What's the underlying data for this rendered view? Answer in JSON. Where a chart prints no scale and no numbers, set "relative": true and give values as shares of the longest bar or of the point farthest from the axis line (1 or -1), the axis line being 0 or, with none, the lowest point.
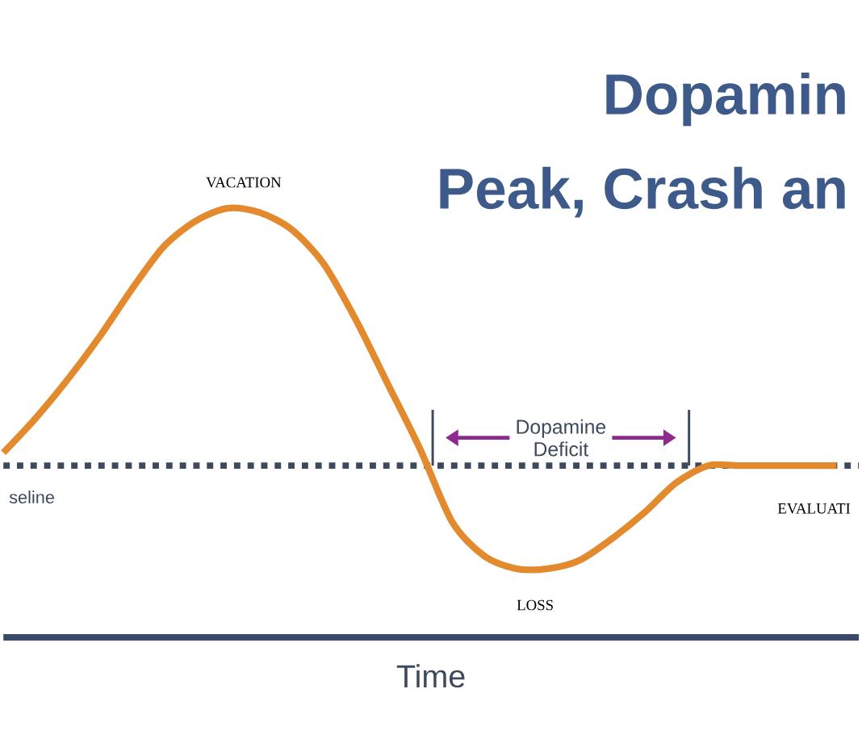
{
  "chart_data": {
    "type": "line",
    "title": "Dopamin",
    "subtitle": "Peak, Crash an",
    "xlabel": "Time",
    "relative": true,
    "categories": [
      null,
      null,
      null,
      null,
      null,
      null,
      null,
      null,
      null,
      null,
      null,
      null,
      null,
      null,
      null,
      null,
      null,
      null,
      null,
      null,
      null,
      null,
      null,
      null,
      null,
      null,
      null
    ],
    "series": [
      {
        "color": "#e38a2e",
        "values": [
          0.43,
          0.51,
          0.6,
          0.7,
          0.81,
          0.91,
          0.97,
          1.0,
          0.99,
          0.95,
          0.87,
          0.74,
          0.59,
          0.44,
          0.27,
          0.19,
          0.16,
          0.16,
          0.18,
          0.23,
          0.29,
          0.36,
          0.4,
          0.4,
          0.4,
          0.4,
          0.4
        ]
      }
    ],
    "line_style": "solid",
    "ref_lines": [
      {
        "axis": "y",
        "value": 0.4,
        "label": "seline",
        "color": "#3d4a5c",
        "line_style": "dotted"
      }
    ],
    "annotations": [
      "VACATION",
      "LOSS",
      "EVALUATI",
      "Dopamine Deficit"
    ]
  }
}
